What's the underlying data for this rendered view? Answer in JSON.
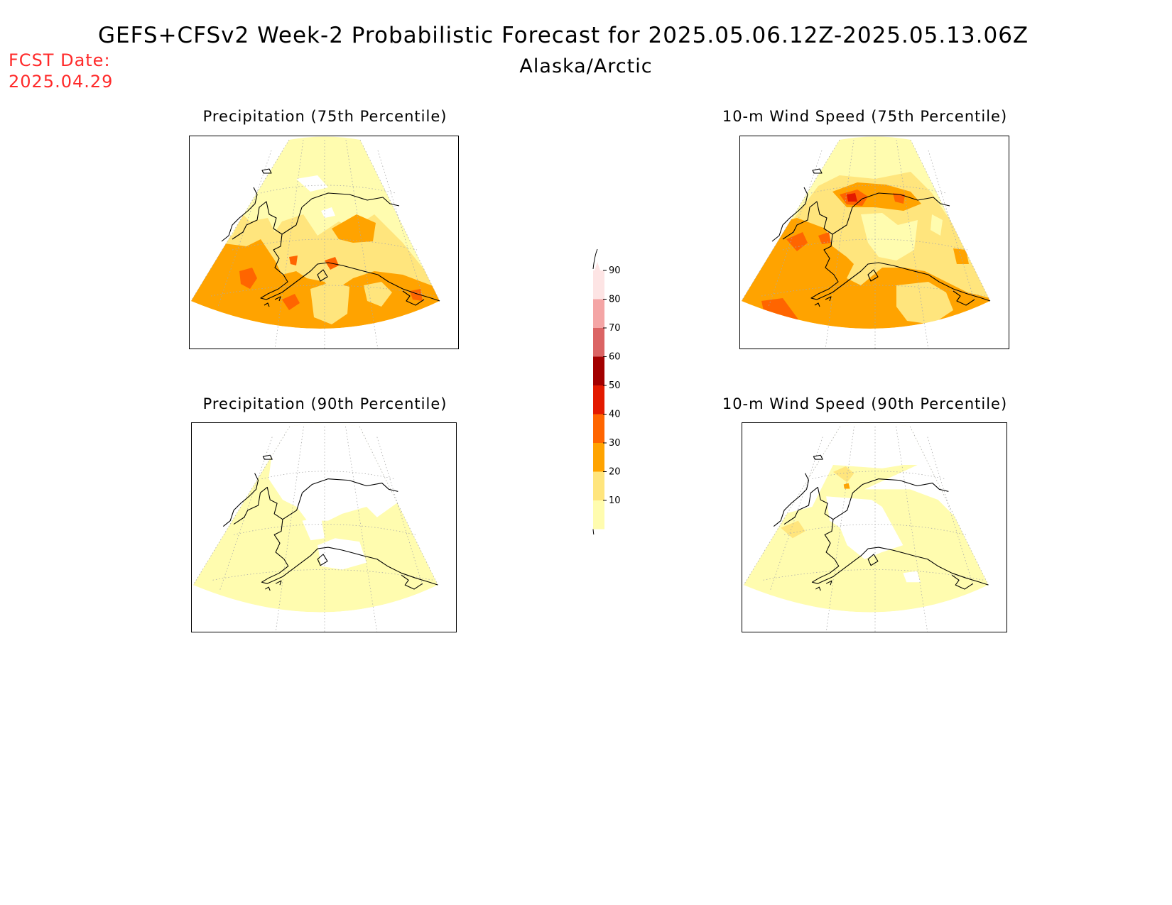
{
  "header": {
    "title": "GEFS+CFSv2 Week-2 Probabilistic Forecast for 2025.05.06.12Z-2025.05.13.06Z",
    "subtitle": "Alaska/Arctic",
    "fcst_label": "FCST Date:",
    "fcst_date": "2025.04.29"
  },
  "panels": [
    {
      "id": "precip75",
      "title": "Precipitation (75th Percentile)",
      "variable": "precipitation",
      "percentile": 75
    },
    {
      "id": "wind75",
      "title": "10-m Wind Speed (75th Percentile)",
      "variable": "wind",
      "percentile": 75
    },
    {
      "id": "precip90",
      "title": "Precipitation (90th Percentile)",
      "variable": "precipitation",
      "percentile": 90
    },
    {
      "id": "wind90",
      "title": "10-m Wind Speed (90th Percentile)",
      "variable": "wind",
      "percentile": 90
    }
  ],
  "colorbar": {
    "ticks": [
      "10",
      "20",
      "30",
      "40",
      "50",
      "60",
      "70",
      "80",
      "90"
    ],
    "colors": {
      "10-20": "#fffcaf",
      "20-30": "#ffe57d",
      "30-40": "#ffa300",
      "40-50": "#ff6500",
      "50-60": "#e31a00",
      "60-70": "#a30000",
      "70-80": "#db6464",
      "80-90": "#f4a5a5",
      "90+": "#fde4e4"
    }
  }
}
